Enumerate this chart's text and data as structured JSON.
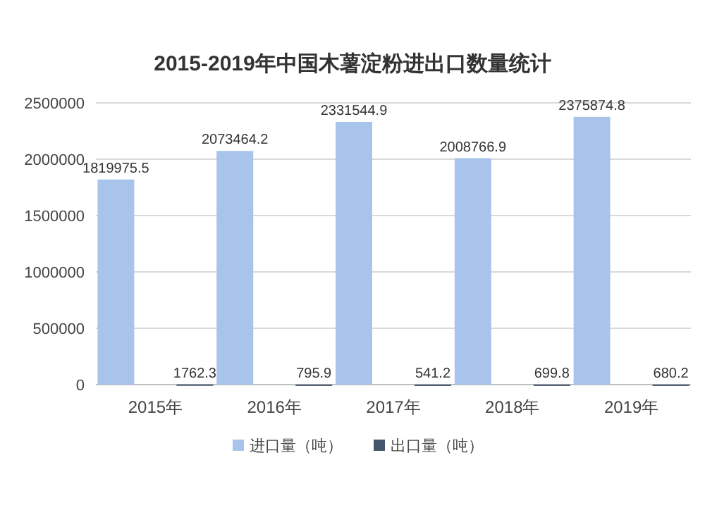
{
  "chart_data": {
    "type": "bar",
    "title": "2015-2019年中国木薯淀粉进出口数量统计",
    "categories": [
      "2015年",
      "2016年",
      "2017年",
      "2018年",
      "2019年"
    ],
    "series": [
      {
        "name": "进口量（吨）",
        "color": "#a9c4eb",
        "values": [
          1819975.5,
          2073464.2,
          2331544.9,
          2008766.9,
          2375874.8
        ]
      },
      {
        "name": "出口量（吨）",
        "color": "#44546a",
        "values": [
          1762.3,
          795.9,
          541.2,
          699.8,
          680.2
        ]
      }
    ],
    "ylim": [
      0,
      2500000
    ],
    "yticks": [
      0,
      500000,
      1000000,
      1500000,
      2000000,
      2500000
    ],
    "grid": "y",
    "legend": "bottom",
    "data_labels": true
  }
}
